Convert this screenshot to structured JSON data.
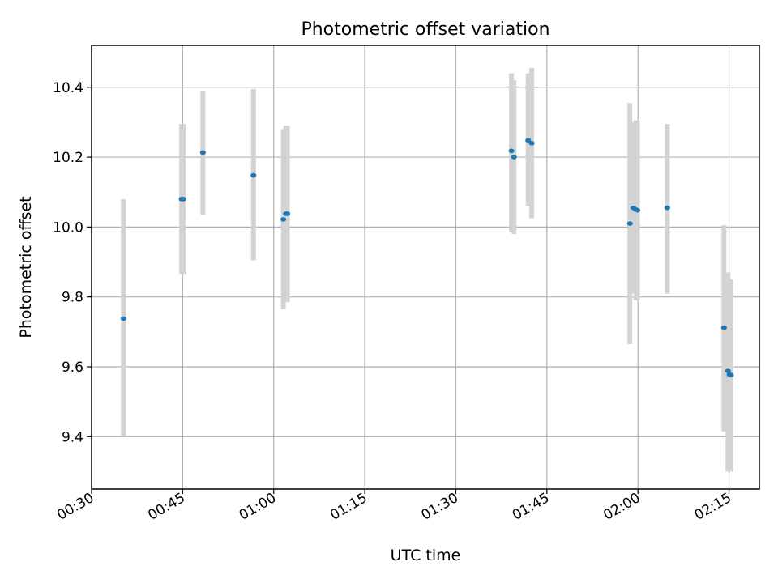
{
  "chart_data": {
    "type": "scatter",
    "title": "Photometric offset variation",
    "xlabel": "UTC time",
    "ylabel": "Photometric offset",
    "xlim": [
      "00:30",
      "02:20"
    ],
    "ylim": [
      9.25,
      10.52
    ],
    "grid": true,
    "x_ticks": [
      "00:30",
      "00:45",
      "01:00",
      "01:15",
      "01:30",
      "01:45",
      "02:00",
      "02:15"
    ],
    "y_ticks": [
      "9.4",
      "9.6",
      "9.8",
      "10.0",
      "10.2",
      "10.4"
    ],
    "marker_color": "#1f77b4",
    "errorbar_color": "#d3d3d3",
    "points": [
      {
        "x": "00:35:15",
        "y": 9.738,
        "ylo": 9.4,
        "yhi": 10.08
      },
      {
        "x": "00:44:50",
        "y": 10.08,
        "ylo": 9.865,
        "yhi": 10.295
      },
      {
        "x": "00:45:05",
        "y": 10.08,
        "ylo": 9.865,
        "yhi": 10.295
      },
      {
        "x": "00:48:20",
        "y": 10.213,
        "ylo": 10.035,
        "yhi": 10.39
      },
      {
        "x": "00:56:40",
        "y": 10.148,
        "ylo": 9.905,
        "yhi": 10.395
      },
      {
        "x": "01:01:35",
        "y": 10.022,
        "ylo": 9.765,
        "yhi": 10.28
      },
      {
        "x": "01:02:00",
        "y": 10.038,
        "ylo": 9.785,
        "yhi": 10.29
      },
      {
        "x": "01:02:15",
        "y": 10.038,
        "ylo": 9.785,
        "yhi": 10.29
      },
      {
        "x": "01:39:10",
        "y": 10.218,
        "ylo": 9.985,
        "yhi": 10.44
      },
      {
        "x": "01:39:35",
        "y": 10.2,
        "ylo": 9.98,
        "yhi": 10.42
      },
      {
        "x": "01:41:55",
        "y": 10.248,
        "ylo": 10.06,
        "yhi": 10.44
      },
      {
        "x": "01:42:30",
        "y": 10.24,
        "ylo": 10.025,
        "yhi": 10.455
      },
      {
        "x": "01:58:40",
        "y": 10.01,
        "ylo": 9.665,
        "yhi": 10.355
      },
      {
        "x": "01:59:15",
        "y": 10.055,
        "ylo": 9.81,
        "yhi": 10.3
      },
      {
        "x": "01:59:40",
        "y": 10.05,
        "ylo": 9.79,
        "yhi": 10.305
      },
      {
        "x": "01:59:55",
        "y": 10.048,
        "ylo": 9.79,
        "yhi": 10.305
      },
      {
        "x": "02:04:50",
        "y": 10.055,
        "ylo": 9.81,
        "yhi": 10.295
      },
      {
        "x": "02:14:10",
        "y": 9.712,
        "ylo": 9.415,
        "yhi": 10.005
      },
      {
        "x": "02:14:50",
        "y": 9.588,
        "ylo": 9.3,
        "yhi": 9.87
      },
      {
        "x": "02:15:05",
        "y": 9.578,
        "ylo": 9.3,
        "yhi": 9.85
      },
      {
        "x": "02:15:20",
        "y": 9.576,
        "ylo": 9.3,
        "yhi": 9.85
      }
    ]
  }
}
